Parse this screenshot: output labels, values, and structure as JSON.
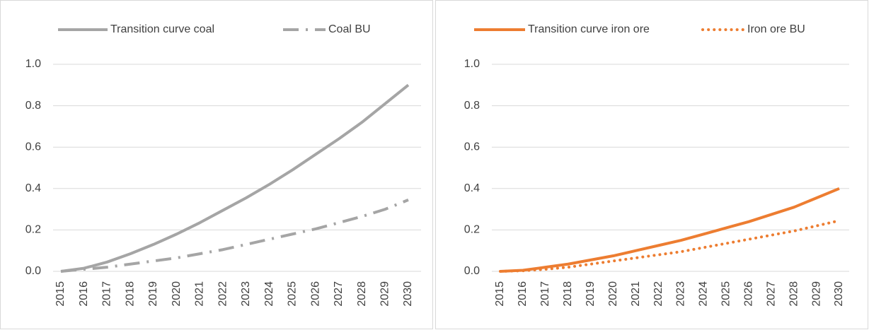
{
  "chart_data": [
    {
      "type": "line",
      "categories": [
        "2015",
        "2016",
        "2017",
        "2018",
        "2019",
        "2020",
        "2021",
        "2022",
        "2023",
        "2024",
        "2025",
        "2026",
        "2027",
        "2028",
        "2029",
        "2030"
      ],
      "series": [
        {
          "name": "Transition curve coal",
          "color": "#a5a5a5",
          "style": "solid",
          "values": [
            0,
            0.015,
            0.045,
            0.085,
            0.13,
            0.18,
            0.235,
            0.295,
            0.355,
            0.42,
            0.49,
            0.565,
            0.64,
            0.72,
            0.81,
            0.9
          ]
        },
        {
          "name": "Coal BU",
          "color": "#a5a5a5",
          "style": "dash-dot",
          "values": [
            0,
            0.01,
            0.02,
            0.035,
            0.05,
            0.065,
            0.085,
            0.105,
            0.13,
            0.155,
            0.18,
            0.205,
            0.235,
            0.265,
            0.3,
            0.345
          ]
        }
      ],
      "ylim": [
        0,
        1
      ],
      "yticks": [
        {
          "value": 0,
          "label": "0.0"
        },
        {
          "value": 0.2,
          "label": "0.2"
        },
        {
          "value": 0.4,
          "label": "0.4"
        },
        {
          "value": 0.6,
          "label": "0.6"
        },
        {
          "value": 0.8,
          "label": "0.8"
        },
        {
          "value": 1,
          "label": "1.0"
        }
      ],
      "grid": true,
      "legend": "top"
    },
    {
      "type": "line",
      "categories": [
        "2015",
        "2016",
        "2017",
        "2018",
        "2019",
        "2020",
        "2021",
        "2022",
        "2023",
        "2024",
        "2025",
        "2026",
        "2027",
        "2028",
        "2029",
        "2030"
      ],
      "series": [
        {
          "name": "Transition curve iron ore",
          "color": "#ed7d31",
          "style": "solid",
          "values": [
            0,
            0.005,
            0.02,
            0.035,
            0.055,
            0.075,
            0.1,
            0.125,
            0.15,
            0.18,
            0.21,
            0.24,
            0.275,
            0.31,
            0.355,
            0.4
          ]
        },
        {
          "name": "Iron ore BU",
          "color": "#ed7d31",
          "style": "dotted",
          "values": [
            0,
            0.003,
            0.01,
            0.02,
            0.035,
            0.05,
            0.065,
            0.08,
            0.095,
            0.115,
            0.135,
            0.155,
            0.175,
            0.195,
            0.22,
            0.245
          ]
        }
      ],
      "ylim": [
        0,
        1
      ],
      "yticks": [
        {
          "value": 0,
          "label": "0.0"
        },
        {
          "value": 0.2,
          "label": "0.2"
        },
        {
          "value": 0.4,
          "label": "0.4"
        },
        {
          "value": 0.6,
          "label": "0.6"
        },
        {
          "value": 0.8,
          "label": "0.8"
        },
        {
          "value": 1,
          "label": "1.0"
        }
      ],
      "grid": true,
      "legend": "top"
    }
  ]
}
